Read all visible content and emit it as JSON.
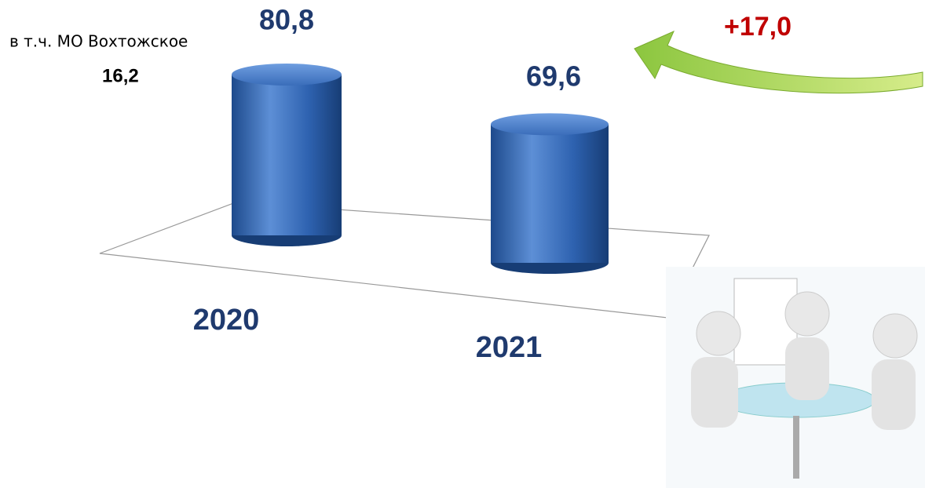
{
  "chart_data": {
    "type": "bar",
    "categories": [
      "2020",
      "2021"
    ],
    "values": [
      80.8,
      69.6
    ],
    "value_labels": [
      "80,8",
      "69,6"
    ],
    "color": "#2e62b0",
    "annotations": [
      {
        "text": "+17,0",
        "color": "#c00000"
      },
      {
        "text": "в т.ч. МО Вохтожское"
      },
      {
        "text": "16,2"
      }
    ]
  }
}
